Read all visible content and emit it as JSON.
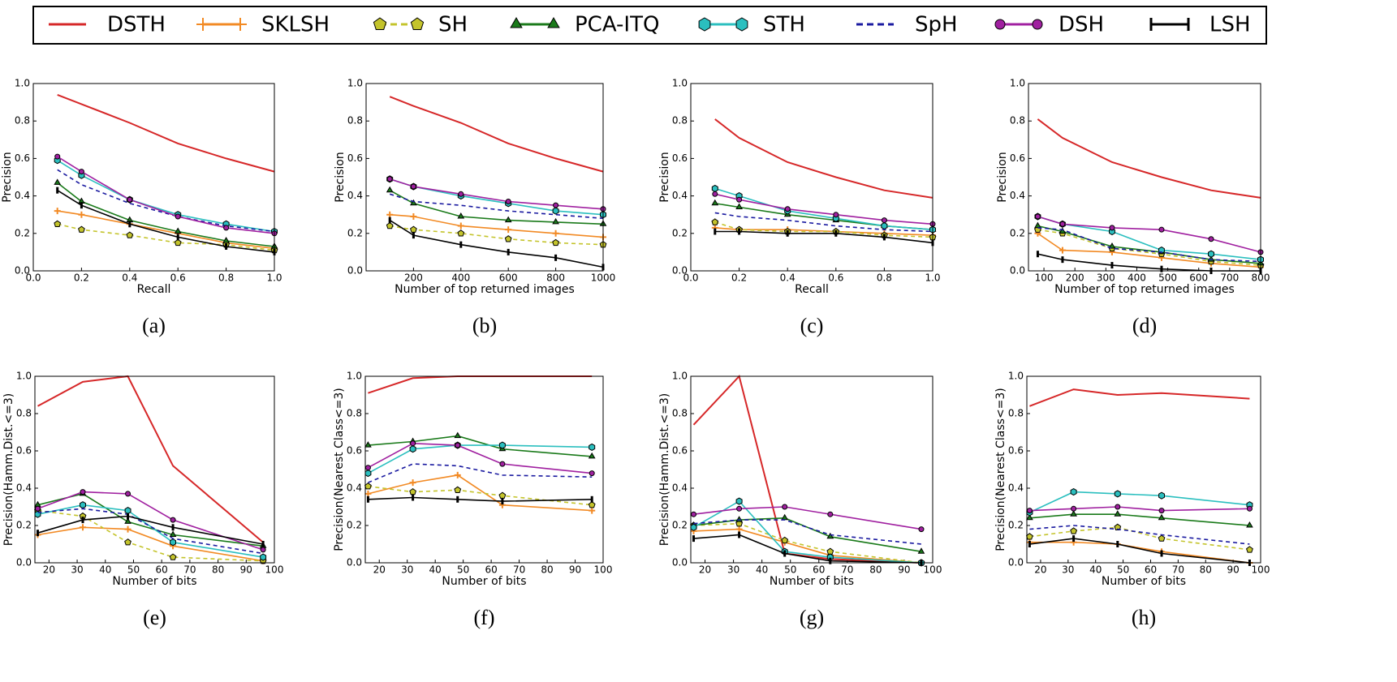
{
  "legend": [
    {
      "name": "DSTH",
      "color": "#d62728",
      "marker": null,
      "dash": false
    },
    {
      "name": "SKLSH",
      "color": "#f28a24",
      "marker": "plus",
      "dash": false
    },
    {
      "name": "SH",
      "color": "#c4c42c",
      "marker": "pentagon",
      "dash": true
    },
    {
      "name": "PCA-ITQ",
      "color": "#1a7a1a",
      "marker": "triangle",
      "dash": false
    },
    {
      "name": "STH",
      "color": "#2bbfbf",
      "marker": "hexagon",
      "dash": false
    },
    {
      "name": "SpH",
      "color": "#1a1aa0",
      "marker": null,
      "dash": true
    },
    {
      "name": "DSH",
      "color": "#a020a0",
      "marker": "circle",
      "dash": false
    },
    {
      "name": "LSH",
      "color": "#000000",
      "marker": "bar",
      "dash": false
    }
  ],
  "chart_data": [
    {
      "type": "line",
      "caption": "(a)",
      "x_label": "Recall",
      "y_label": "Precision",
      "x": [
        0.1,
        0.2,
        0.4,
        0.6,
        0.8,
        1.0
      ],
      "xlim": [
        0,
        1
      ],
      "xticks": [
        {
          "value": 0,
          "label": "0.0"
        },
        0.2,
        0.4,
        0.6,
        0.8,
        {
          "value": 1,
          "label": "1.0"
        }
      ],
      "ylim": [
        0,
        1
      ],
      "yticks": [
        {
          "value": 0,
          "label": "0.0"
        },
        0.2,
        0.4,
        0.6,
        0.8,
        {
          "value": 1,
          "label": "1.0"
        }
      ],
      "series": [
        {
          "values": [
            0.94,
            0.89,
            0.79,
            0.68,
            0.6,
            0.53
          ]
        },
        {
          "values": [
            0.32,
            0.3,
            0.25,
            0.2,
            0.15,
            0.12
          ]
        },
        {
          "values": [
            0.25,
            0.22,
            0.19,
            0.15,
            0.14,
            0.11
          ]
        },
        {
          "values": [
            0.47,
            0.37,
            0.27,
            0.21,
            0.16,
            0.13
          ]
        },
        {
          "values": [
            0.59,
            0.51,
            0.38,
            0.3,
            0.25,
            0.21
          ]
        },
        {
          "values": [
            0.54,
            0.46,
            0.36,
            0.29,
            0.24,
            0.21
          ]
        },
        {
          "values": [
            0.61,
            0.53,
            0.38,
            0.29,
            0.23,
            0.2
          ]
        },
        {
          "values": [
            0.43,
            0.35,
            0.25,
            0.18,
            0.13,
            0.1
          ]
        }
      ]
    },
    {
      "type": "line",
      "caption": "(b)",
      "x_label": "Number of top returned images",
      "y_label": "Precision",
      "x": [
        100,
        200,
        400,
        600,
        800,
        1000
      ],
      "xlim": [
        0,
        1000
      ],
      "xticks": [
        200,
        400,
        600,
        800,
        1000
      ],
      "ylim": [
        0,
        1
      ],
      "yticks": [
        {
          "value": 0,
          "label": "0.0"
        },
        0.2,
        0.4,
        0.6,
        0.8,
        {
          "value": 1,
          "label": "1.0"
        }
      ],
      "series": [
        {
          "values": [
            0.93,
            0.88,
            0.79,
            0.68,
            0.6,
            0.53
          ]
        },
        {
          "values": [
            0.3,
            0.29,
            0.24,
            0.22,
            0.2,
            0.18
          ]
        },
        {
          "values": [
            0.24,
            0.22,
            0.2,
            0.17,
            0.15,
            0.14
          ]
        },
        {
          "values": [
            0.43,
            0.36,
            0.29,
            0.27,
            0.26,
            0.25
          ]
        },
        {
          "values": [
            0.49,
            0.45,
            0.4,
            0.36,
            0.32,
            0.3
          ]
        },
        {
          "values": [
            0.41,
            0.37,
            0.35,
            0.32,
            0.3,
            0.28
          ]
        },
        {
          "values": [
            0.49,
            0.45,
            0.41,
            0.37,
            0.35,
            0.33
          ]
        },
        {
          "values": [
            0.27,
            0.19,
            0.14,
            0.1,
            0.07,
            0.02
          ]
        }
      ]
    },
    {
      "type": "line",
      "caption": "(c)",
      "x_label": "Recall",
      "y_label": "Precision",
      "x": [
        0.1,
        0.2,
        0.4,
        0.6,
        0.8,
        1.0
      ],
      "xlim": [
        0,
        1
      ],
      "xticks": [
        {
          "value": 0,
          "label": "0.0"
        },
        0.2,
        0.4,
        0.6,
        0.8,
        {
          "value": 1,
          "label": "1.0"
        }
      ],
      "ylim": [
        0,
        1
      ],
      "yticks": [
        {
          "value": 0,
          "label": "0.0"
        },
        0.2,
        0.4,
        0.6,
        0.8,
        {
          "value": 1,
          "label": "1.0"
        }
      ],
      "series": [
        {
          "values": [
            0.81,
            0.71,
            0.58,
            0.5,
            0.43,
            0.39
          ]
        },
        {
          "values": [
            0.23,
            0.22,
            0.22,
            0.21,
            0.2,
            0.19
          ]
        },
        {
          "values": [
            0.26,
            0.22,
            0.21,
            0.21,
            0.19,
            0.18
          ]
        },
        {
          "values": [
            0.36,
            0.34,
            0.3,
            0.27,
            0.24,
            0.22
          ]
        },
        {
          "values": [
            0.44,
            0.4,
            0.32,
            0.28,
            0.24,
            0.22
          ]
        },
        {
          "values": [
            0.31,
            0.29,
            0.27,
            0.24,
            0.22,
            0.21
          ]
        },
        {
          "values": [
            0.41,
            0.38,
            0.33,
            0.3,
            0.27,
            0.25
          ]
        },
        {
          "values": [
            0.21,
            0.21,
            0.2,
            0.2,
            0.18,
            0.15
          ]
        }
      ]
    },
    {
      "type": "line",
      "caption": "(d)",
      "x_label": "Number of top returned images",
      "y_label": "Precision",
      "x": [
        80,
        160,
        320,
        480,
        640,
        800
      ],
      "xlim": [
        50,
        800
      ],
      "xticks": [
        100,
        200,
        300,
        400,
        500,
        600,
        700,
        800
      ],
      "ylim": [
        0,
        1
      ],
      "yticks": [
        {
          "value": 0,
          "label": "0.0"
        },
        0.2,
        0.4,
        0.6,
        0.8,
        {
          "value": 1,
          "label": "1.0"
        }
      ],
      "series": [
        {
          "values": [
            0.81,
            0.71,
            0.58,
            0.5,
            0.43,
            0.39
          ]
        },
        {
          "values": [
            0.2,
            0.11,
            0.1,
            0.07,
            0.04,
            0.02
          ]
        },
        {
          "values": [
            0.22,
            0.2,
            0.12,
            0.09,
            0.05,
            0.03
          ]
        },
        {
          "values": [
            0.24,
            0.21,
            0.13,
            0.1,
            0.06,
            0.04
          ]
        },
        {
          "values": [
            0.29,
            0.25,
            0.21,
            0.11,
            0.09,
            0.06
          ]
        },
        {
          "values": [
            0.23,
            0.22,
            0.12,
            0.1,
            0.06,
            0.05
          ]
        },
        {
          "values": [
            0.29,
            0.25,
            0.23,
            0.22,
            0.17,
            0.1
          ]
        },
        {
          "values": [
            0.09,
            0.06,
            0.03,
            0.01,
            0.0,
            0.0
          ]
        }
      ]
    },
    {
      "type": "line",
      "caption": "(e)",
      "x_label": "Number of bits",
      "y_label": "Precision(Hamm.Dist.<=3)",
      "x": [
        16,
        32,
        48,
        64,
        96
      ],
      "xlim": [
        15,
        100
      ],
      "xticks": [
        20,
        30,
        40,
        50,
        60,
        70,
        80,
        90,
        100
      ],
      "ylim": [
        0,
        1
      ],
      "yticks": [
        {
          "value": 0,
          "label": "0.0"
        },
        0.2,
        0.4,
        0.6,
        0.8,
        {
          "value": 1,
          "label": "1.0"
        }
      ],
      "series": [
        {
          "values": [
            0.84,
            0.97,
            1.0,
            0.52,
            0.11
          ]
        },
        {
          "values": [
            0.15,
            0.19,
            0.18,
            0.09,
            0.01
          ]
        },
        {
          "values": [
            0.28,
            0.25,
            0.11,
            0.03,
            0.01
          ]
        },
        {
          "values": [
            0.31,
            0.37,
            0.22,
            0.15,
            0.09
          ]
        },
        {
          "values": [
            0.26,
            0.31,
            0.28,
            0.11,
            0.03
          ]
        },
        {
          "values": [
            0.27,
            0.29,
            0.26,
            0.13,
            0.05
          ]
        },
        {
          "values": [
            0.29,
            0.38,
            0.37,
            0.23,
            0.07
          ]
        },
        {
          "values": [
            0.16,
            0.23,
            0.25,
            0.19,
            0.1
          ]
        }
      ]
    },
    {
      "type": "line",
      "caption": "(f)",
      "x_label": "Number of bits",
      "y_label": "Precision(Nearest Class<=3)",
      "x": [
        16,
        32,
        48,
        64,
        96
      ],
      "xlim": [
        15,
        100
      ],
      "xticks": [
        20,
        30,
        40,
        50,
        60,
        70,
        80,
        90,
        100
      ],
      "ylim": [
        0,
        1
      ],
      "yticks": [
        {
          "value": 0,
          "label": "0.0"
        },
        0.2,
        0.4,
        0.6,
        0.8,
        {
          "value": 1,
          "label": "1.0"
        }
      ],
      "series": [
        {
          "values": [
            0.91,
            0.99,
            1.0,
            1.0,
            1.0
          ]
        },
        {
          "values": [
            0.37,
            0.43,
            0.47,
            0.31,
            0.28
          ]
        },
        {
          "values": [
            0.41,
            0.38,
            0.39,
            0.36,
            0.31
          ]
        },
        {
          "values": [
            0.63,
            0.65,
            0.68,
            0.61,
            0.57
          ]
        },
        {
          "values": [
            0.48,
            0.61,
            0.63,
            0.63,
            0.62
          ]
        },
        {
          "values": [
            0.43,
            0.53,
            0.52,
            0.47,
            0.46
          ]
        },
        {
          "values": [
            0.51,
            0.64,
            0.63,
            0.53,
            0.48
          ]
        },
        {
          "values": [
            0.34,
            0.35,
            0.34,
            0.33,
            0.34
          ]
        }
      ]
    },
    {
      "type": "line",
      "caption": "(g)",
      "x_label": "Number of bits",
      "y_label": "Precision(Hamm.Dist.<=3)",
      "x": [
        16,
        32,
        48,
        64,
        96
      ],
      "xlim": [
        15,
        100
      ],
      "xticks": [
        20,
        30,
        40,
        50,
        60,
        70,
        80,
        90,
        100
      ],
      "ylim": [
        0,
        1
      ],
      "yticks": [
        {
          "value": 0,
          "label": "0.0"
        },
        0.2,
        0.4,
        0.6,
        0.8,
        {
          "value": 1,
          "label": "1.0"
        }
      ],
      "series": [
        {
          "values": [
            0.74,
            1.0,
            0.05,
            0.02,
            0.0
          ]
        },
        {
          "values": [
            0.17,
            0.18,
            0.11,
            0.04,
            0.0
          ]
        },
        {
          "values": [
            0.2,
            0.21,
            0.12,
            0.06,
            0.0
          ]
        },
        {
          "values": [
            0.2,
            0.23,
            0.24,
            0.14,
            0.06
          ]
        },
        {
          "values": [
            0.19,
            0.33,
            0.06,
            0.03,
            0.0
          ]
        },
        {
          "values": [
            0.21,
            0.23,
            0.23,
            0.15,
            0.1
          ]
        },
        {
          "values": [
            0.26,
            0.29,
            0.3,
            0.26,
            0.18
          ]
        },
        {
          "values": [
            0.13,
            0.15,
            0.05,
            0.01,
            0.0
          ]
        }
      ]
    },
    {
      "type": "line",
      "caption": "(h)",
      "x_label": "Number of bits",
      "y_label": "Precision(Nearest Class<=3)",
      "x": [
        16,
        32,
        48,
        64,
        96
      ],
      "xlim": [
        15,
        100
      ],
      "xticks": [
        20,
        30,
        40,
        50,
        60,
        70,
        80,
        90,
        100
      ],
      "ylim": [
        0,
        1
      ],
      "yticks": [
        {
          "value": 0,
          "label": "0.0"
        },
        0.2,
        0.4,
        0.6,
        0.8,
        {
          "value": 1,
          "label": "1.0"
        }
      ],
      "series": [
        {
          "values": [
            0.84,
            0.93,
            0.9,
            0.91,
            0.88
          ]
        },
        {
          "values": [
            0.11,
            0.11,
            0.1,
            0.06,
            0.0
          ]
        },
        {
          "values": [
            0.14,
            0.17,
            0.19,
            0.13,
            0.07
          ]
        },
        {
          "values": [
            0.24,
            0.26,
            0.26,
            0.24,
            0.2
          ]
        },
        {
          "values": [
            0.27,
            0.38,
            0.37,
            0.36,
            0.31
          ]
        },
        {
          "values": [
            0.18,
            0.2,
            0.18,
            0.15,
            0.1
          ]
        },
        {
          "values": [
            0.28,
            0.29,
            0.3,
            0.28,
            0.29
          ]
        },
        {
          "values": [
            0.1,
            0.13,
            0.1,
            0.05,
            0.0
          ]
        }
      ]
    }
  ]
}
